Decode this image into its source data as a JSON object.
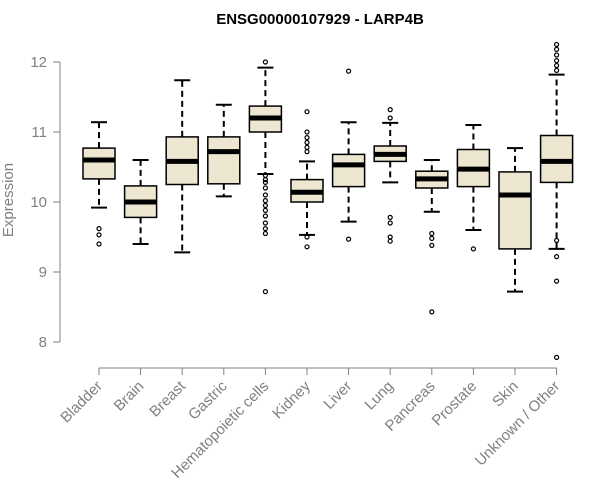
{
  "chart_data": {
    "type": "boxplot",
    "title": "ENSG00000107929 - LARP4B",
    "xlabel": "",
    "ylabel": "Expression",
    "ylim": [
      7.7,
      12.4
    ],
    "yticks": [
      8,
      9,
      10,
      11,
      12
    ],
    "colors": {
      "box_fill": "#ede6d0",
      "box_stroke": "#000000",
      "axis": "#808080",
      "median": "#000000"
    },
    "categories": [
      "Bladder",
      "Brain",
      "Breast",
      "Gastric",
      "Hematopoietic cells",
      "Kidney",
      "Liver",
      "Lung",
      "Pancreas",
      "Prostate",
      "Skin",
      "Unknown / Other"
    ],
    "boxes": [
      {
        "category": "Bladder",
        "whisker_low": 9.92,
        "q1": 10.33,
        "median": 10.6,
        "q3": 10.77,
        "whisker_high": 11.14,
        "outliers": [
          9.62,
          9.53,
          9.4
        ]
      },
      {
        "category": "Brain",
        "whisker_low": 9.4,
        "q1": 9.78,
        "median": 10.0,
        "q3": 10.23,
        "whisker_high": 10.6,
        "outliers": []
      },
      {
        "category": "Breast",
        "whisker_low": 9.28,
        "q1": 10.25,
        "median": 10.58,
        "q3": 10.93,
        "whisker_high": 11.74,
        "outliers": []
      },
      {
        "category": "Gastric",
        "whisker_low": 10.08,
        "q1": 10.26,
        "median": 10.72,
        "q3": 10.93,
        "whisker_high": 11.39,
        "outliers": []
      },
      {
        "category": "Hematopoietic cells",
        "whisker_low": 10.4,
        "q1": 11.0,
        "median": 11.2,
        "q3": 11.37,
        "whisker_high": 11.92,
        "outliers": [
          12.0,
          10.38,
          10.32,
          10.28,
          10.2,
          10.1,
          10.02,
          9.95,
          9.88,
          9.8,
          9.7,
          9.62,
          9.55,
          8.72
        ]
      },
      {
        "category": "Kidney",
        "whisker_low": 9.53,
        "q1": 10.0,
        "median": 10.14,
        "q3": 10.32,
        "whisker_high": 10.58,
        "outliers": [
          11.29,
          11.0,
          10.92,
          10.85,
          10.78,
          10.72,
          9.5,
          9.36
        ]
      },
      {
        "category": "Liver",
        "whisker_low": 9.72,
        "q1": 10.22,
        "median": 10.53,
        "q3": 10.68,
        "whisker_high": 11.14,
        "outliers": [
          11.87,
          9.47
        ]
      },
      {
        "category": "Lung",
        "whisker_low": 10.28,
        "q1": 10.58,
        "median": 10.68,
        "q3": 10.8,
        "whisker_high": 11.13,
        "outliers": [
          11.32,
          11.2,
          9.78,
          9.7,
          9.5,
          9.44
        ]
      },
      {
        "category": "Pancreas",
        "whisker_low": 9.86,
        "q1": 10.2,
        "median": 10.33,
        "q3": 10.44,
        "whisker_high": 10.6,
        "outliers": [
          9.55,
          9.48,
          9.38,
          8.43
        ]
      },
      {
        "category": "Prostate",
        "whisker_low": 9.6,
        "q1": 10.22,
        "median": 10.47,
        "q3": 10.75,
        "whisker_high": 11.1,
        "outliers": [
          9.33
        ]
      },
      {
        "category": "Skin",
        "whisker_low": 8.72,
        "q1": 9.33,
        "median": 10.1,
        "q3": 10.43,
        "whisker_high": 10.77,
        "outliers": []
      },
      {
        "category": "Unknown / Other",
        "whisker_low": 9.33,
        "q1": 10.28,
        "median": 10.58,
        "q3": 10.95,
        "whisker_high": 11.82,
        "outliers": [
          12.25,
          12.18,
          12.1,
          12.02,
          11.95,
          11.88,
          9.45,
          9.22,
          8.87,
          7.78
        ]
      }
    ]
  }
}
